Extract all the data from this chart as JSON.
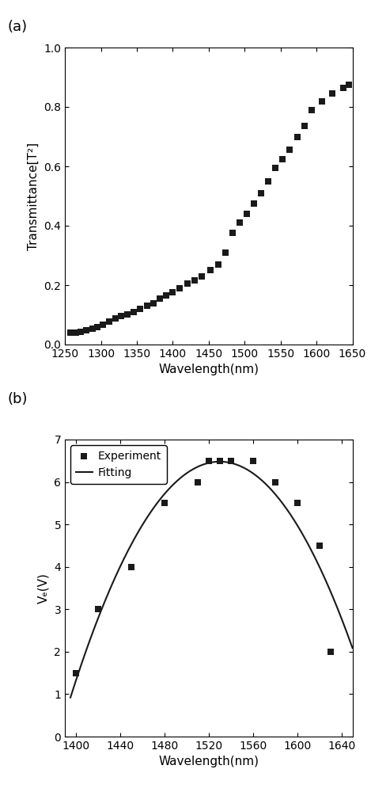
{
  "panel_a": {
    "label": "(a)",
    "scatter_x": [
      1258,
      1265,
      1272,
      1280,
      1288,
      1295,
      1303,
      1311,
      1320,
      1328,
      1337,
      1346,
      1355,
      1364,
      1373,
      1382,
      1391,
      1400,
      1410,
      1420,
      1430,
      1440,
      1452,
      1463,
      1473,
      1483,
      1493,
      1503,
      1513,
      1523,
      1533,
      1543,
      1553,
      1563,
      1573,
      1583,
      1593,
      1608,
      1622,
      1637,
      1645
    ],
    "scatter_y": [
      0.04,
      0.04,
      0.043,
      0.048,
      0.053,
      0.06,
      0.068,
      0.077,
      0.087,
      0.095,
      0.102,
      0.11,
      0.12,
      0.13,
      0.14,
      0.155,
      0.165,
      0.175,
      0.19,
      0.205,
      0.215,
      0.23,
      0.25,
      0.27,
      0.31,
      0.375,
      0.41,
      0.44,
      0.475,
      0.51,
      0.55,
      0.595,
      0.625,
      0.655,
      0.7,
      0.735,
      0.79,
      0.82,
      0.845,
      0.865,
      0.875
    ],
    "xlabel": "Wavelength(nm)",
    "ylabel": "Transmittance[T²]",
    "xlim": [
      1250,
      1650
    ],
    "ylim": [
      0.0,
      1.0
    ],
    "xticks": [
      1250,
      1300,
      1350,
      1400,
      1450,
      1500,
      1550,
      1600,
      1650
    ],
    "yticks": [
      0.0,
      0.2,
      0.4,
      0.6,
      0.8,
      1.0
    ]
  },
  "panel_b": {
    "label": "(b)",
    "scatter_x": [
      1400,
      1420,
      1450,
      1480,
      1510,
      1520,
      1530,
      1540,
      1560,
      1580,
      1600,
      1620,
      1630
    ],
    "scatter_y": [
      1.5,
      3.0,
      4.0,
      5.5,
      6.0,
      6.5,
      6.5,
      6.5,
      6.5,
      6.0,
      5.5,
      4.5,
      2.0
    ],
    "fit_peak_x": 1530,
    "fit_peak_y": 6.48,
    "fit_a": -0.000305,
    "xlabel": "Wavelength(nm)",
    "ylabel": "Vₑ(V)",
    "xlim": [
      1390,
      1650
    ],
    "ylim": [
      0,
      7
    ],
    "xticks": [
      1400,
      1440,
      1480,
      1520,
      1560,
      1600,
      1640
    ],
    "yticks": [
      0,
      1,
      2,
      3,
      4,
      5,
      6,
      7
    ],
    "legend_experiment": "Experiment",
    "legend_fitting": "Fitting"
  },
  "marker_color": "#1a1a1a",
  "marker_size": 28,
  "line_color": "#1a1a1a",
  "background_color": "#ffffff",
  "font_size_label": 11,
  "font_size_tick": 10,
  "font_size_panel": 13
}
